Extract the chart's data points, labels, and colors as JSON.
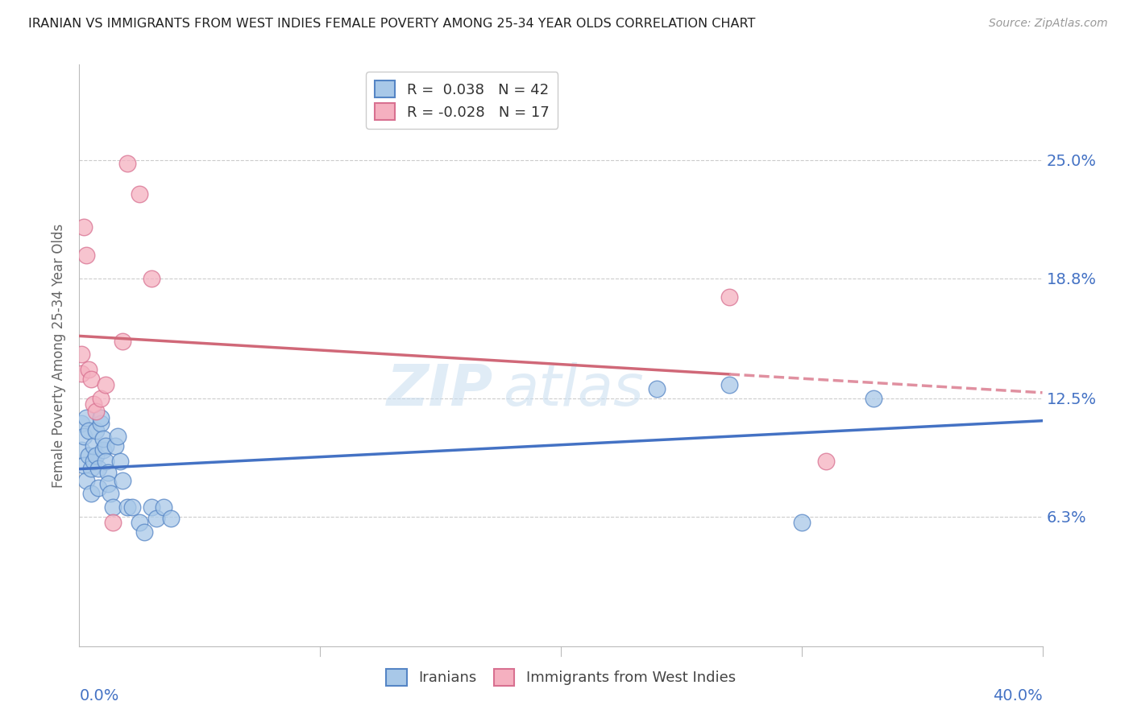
{
  "title": "IRANIAN VS IMMIGRANTS FROM WEST INDIES FEMALE POVERTY AMONG 25-34 YEAR OLDS CORRELATION CHART",
  "source": "Source: ZipAtlas.com",
  "ylabel": "Female Poverty Among 25-34 Year Olds",
  "watermark": "ZIPatlas",
  "legend_1_label": "R =  0.038   N = 42",
  "legend_2_label": "R = -0.028   N = 17",
  "iranians_color": "#a8c8e8",
  "west_indies_color": "#f5b0c0",
  "iranians_edge_color": "#5585c5",
  "west_indies_edge_color": "#d87090",
  "iranians_line_color": "#4472c4",
  "west_indies_line_solid_color": "#d06878",
  "west_indies_line_dash_color": "#e090a0",
  "xmin": 0.0,
  "xmax": 0.4,
  "ymin": -0.005,
  "ymax": 0.3,
  "ytick_values": [
    0.063,
    0.125,
    0.188,
    0.25
  ],
  "ytick_labels": [
    "6.3%",
    "12.5%",
    "18.8%",
    "25.0%"
  ],
  "iranians_x": [
    0.001,
    0.001,
    0.002,
    0.002,
    0.003,
    0.003,
    0.004,
    0.004,
    0.005,
    0.005,
    0.006,
    0.006,
    0.007,
    0.007,
    0.008,
    0.008,
    0.009,
    0.009,
    0.01,
    0.01,
    0.011,
    0.011,
    0.012,
    0.012,
    0.013,
    0.014,
    0.015,
    0.016,
    0.017,
    0.018,
    0.02,
    0.022,
    0.025,
    0.027,
    0.03,
    0.032,
    0.035,
    0.038,
    0.24,
    0.27,
    0.3,
    0.33
  ],
  "iranians_y": [
    0.112,
    0.098,
    0.105,
    0.09,
    0.082,
    0.115,
    0.108,
    0.095,
    0.075,
    0.088,
    0.092,
    0.1,
    0.095,
    0.108,
    0.088,
    0.078,
    0.112,
    0.115,
    0.098,
    0.104,
    0.1,
    0.092,
    0.086,
    0.08,
    0.075,
    0.068,
    0.1,
    0.105,
    0.092,
    0.082,
    0.068,
    0.068,
    0.06,
    0.055,
    0.068,
    0.062,
    0.068,
    0.062,
    0.13,
    0.132,
    0.06,
    0.125
  ],
  "west_indies_x": [
    0.001,
    0.001,
    0.002,
    0.003,
    0.004,
    0.005,
    0.006,
    0.007,
    0.009,
    0.011,
    0.014,
    0.018,
    0.02,
    0.025,
    0.03,
    0.27,
    0.31
  ],
  "west_indies_y": [
    0.148,
    0.138,
    0.215,
    0.2,
    0.14,
    0.135,
    0.122,
    0.118,
    0.125,
    0.132,
    0.06,
    0.155,
    0.248,
    0.232,
    0.188,
    0.178,
    0.092
  ]
}
